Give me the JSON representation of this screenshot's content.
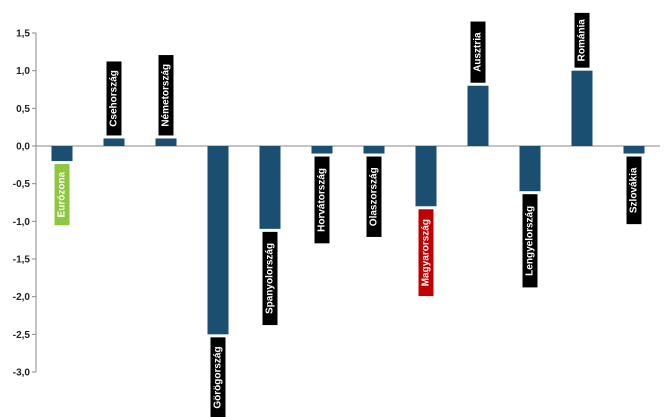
{
  "chart_data": {
    "type": "bar",
    "categories": [
      "Eurózona",
      "Csehország",
      "Németország",
      "Görögország",
      "Spanyolország",
      "Horvátország",
      "Olaszország",
      "Magyarország",
      "Ausztria",
      "Lengyelország",
      "Románia",
      "Szlovákia"
    ],
    "values": [
      -0.2,
      0.1,
      0.1,
      -2.5,
      -1.1,
      -0.1,
      -0.1,
      -0.8,
      0.8,
      -0.6,
      1.0,
      -0.1
    ],
    "label_colors": [
      "#8dc63f",
      "#000000",
      "#000000",
      "#000000",
      "#000000",
      "#000000",
      "#000000",
      "#c00000",
      "#000000",
      "#000000",
      "#000000",
      "#000000"
    ],
    "bar_color": "#1a4f72",
    "title": "",
    "xlabel": "",
    "ylabel": "",
    "ylim": [
      -3.0,
      1.5
    ],
    "yticks": [
      "1,5",
      "1,0",
      "0,5",
      "0,0",
      "-0,5",
      "-1,0",
      "-1,5",
      "-2,0",
      "-2,5",
      "-3,0"
    ],
    "grid": false,
    "legend": "none"
  }
}
